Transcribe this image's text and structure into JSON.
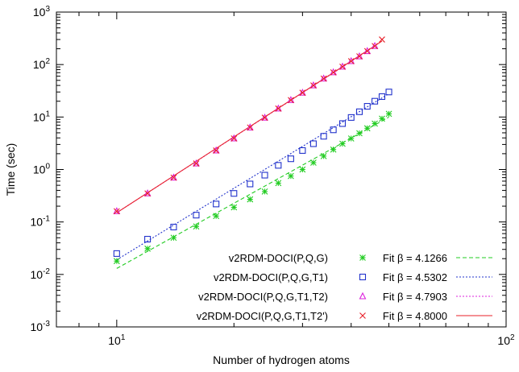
{
  "chart_data": {
    "type": "scatter",
    "x_scale": "log",
    "y_scale": "log",
    "xlim": [
      7,
      100
    ],
    "ylim": [
      0.001,
      1000
    ],
    "xlabel": "Number of hydrogen atoms",
    "ylabel": "Time (sec)",
    "x_ticks": [
      {
        "value": 10,
        "base": "10",
        "exp": "1"
      },
      {
        "value": 100,
        "base": "10",
        "exp": "2"
      }
    ],
    "y_ticks": [
      {
        "value": 0.001,
        "base": "10",
        "exp": "-3"
      },
      {
        "value": 0.01,
        "base": "10",
        "exp": "-2"
      },
      {
        "value": 0.1,
        "base": "10",
        "exp": "-1"
      },
      {
        "value": 1,
        "base": "10",
        "exp": "0"
      },
      {
        "value": 10,
        "base": "10",
        "exp": "1"
      },
      {
        "value": 100,
        "base": "10",
        "exp": "2"
      },
      {
        "value": 1000,
        "base": "10",
        "exp": "3"
      }
    ],
    "grid": false,
    "legend_position": "bottom-right",
    "series": [
      {
        "name": "v2RDM-DOCI(P,Q,G)",
        "fit_label": "Fit β = 4.1266",
        "marker": "star",
        "color": "#22cc22",
        "line_style": "dashed",
        "fit": {
          "beta": 4.1266,
          "x0": 10,
          "y0": 0.013
        },
        "x": [
          10,
          12,
          14,
          16,
          18,
          20,
          22,
          24,
          26,
          28,
          30,
          32,
          34,
          36,
          38,
          40,
          42,
          44,
          46,
          48,
          50
        ],
        "y": [
          0.018,
          0.031,
          0.05,
          0.082,
          0.13,
          0.19,
          0.27,
          0.38,
          0.55,
          0.75,
          1.0,
          1.35,
          1.8,
          2.4,
          3.1,
          3.9,
          4.9,
          6.1,
          7.5,
          9.3,
          11.5
        ]
      },
      {
        "name": "v2RDM-DOCI(P,Q,G,T1)",
        "fit_label": "Fit β = 4.5302",
        "marker": "square",
        "color": "#2233cc",
        "line_style": "dotted",
        "fit": {
          "beta": 4.5302,
          "x0": 10,
          "y0": 0.019
        },
        "x": [
          10,
          12,
          14,
          16,
          18,
          20,
          22,
          24,
          26,
          28,
          30,
          32,
          34,
          36,
          38,
          40,
          42,
          44,
          46,
          48,
          50
        ],
        "y": [
          0.025,
          0.047,
          0.08,
          0.135,
          0.22,
          0.35,
          0.53,
          0.78,
          1.2,
          1.6,
          2.3,
          3.1,
          4.3,
          5.7,
          7.5,
          9.8,
          12.6,
          16,
          20,
          24.5,
          30
        ]
      },
      {
        "name": "v2RDM-DOCI(P,Q,G,T1,T2)",
        "fit_label": "Fit β = 4.7903",
        "marker": "triangle",
        "color": "#dd22dd",
        "line_style": "dotted",
        "fit": {
          "beta": 4.7903,
          "x0": 10,
          "y0": 0.15
        },
        "x": [
          10,
          12,
          14,
          16,
          18,
          20,
          22,
          24,
          26,
          28,
          30,
          32,
          34,
          36,
          38,
          40,
          42,
          44,
          46
        ],
        "y": [
          0.16,
          0.35,
          0.7,
          1.3,
          2.3,
          3.9,
          6.3,
          9.7,
          14.5,
          21,
          29,
          40,
          54,
          71,
          91,
          116,
          143,
          180,
          225
        ]
      },
      {
        "name": "v2RDM-DOCI(P,Q,G,T1,T2')",
        "fit_label": "Fit β = 4.8000",
        "marker": "x",
        "color": "#e8202a",
        "line_style": "solid",
        "fit": {
          "beta": 4.8,
          "x0": 10,
          "y0": 0.15
        },
        "x": [
          10,
          12,
          14,
          16,
          18,
          20,
          22,
          24,
          26,
          28,
          30,
          32,
          34,
          36,
          38,
          40,
          42,
          44,
          46,
          48
        ],
        "y": [
          0.16,
          0.35,
          0.7,
          1.3,
          2.3,
          3.9,
          6.3,
          9.7,
          14.5,
          21,
          29,
          40,
          54,
          71,
          91,
          116,
          143,
          180,
          225,
          300
        ]
      }
    ]
  }
}
